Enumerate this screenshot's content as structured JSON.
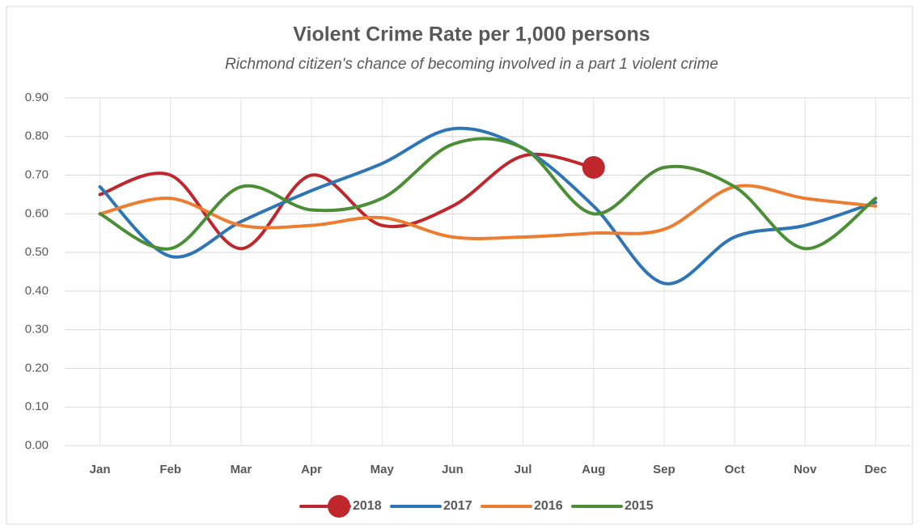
{
  "chart_data": {
    "type": "line",
    "title": "Violent Crime Rate per 1,000 persons",
    "subtitle": "Richmond citizen's chance of becoming involved in a part 1 violent crime",
    "categories": [
      "Jan",
      "Feb",
      "Mar",
      "Apr",
      "May",
      "Jun",
      "Jul",
      "Aug",
      "Sep",
      "Oct",
      "Nov",
      "Dec"
    ],
    "series": [
      {
        "name": "2018",
        "color": "#c0272d",
        "end_marker": true,
        "values": [
          0.65,
          0.7,
          0.51,
          0.7,
          0.57,
          0.62,
          0.75,
          0.72,
          null,
          null,
          null,
          null
        ]
      },
      {
        "name": "2017",
        "color": "#2e75b6",
        "values": [
          0.67,
          0.49,
          0.58,
          0.66,
          0.73,
          0.82,
          0.77,
          0.62,
          0.42,
          0.54,
          0.57,
          0.63
        ]
      },
      {
        "name": "2016",
        "color": "#ed7d31",
        "values": [
          0.6,
          0.64,
          0.57,
          0.57,
          0.59,
          0.54,
          0.54,
          0.55,
          0.56,
          0.67,
          0.64,
          0.62
        ]
      },
      {
        "name": "2015",
        "color": "#4a8f35",
        "values": [
          0.6,
          0.51,
          0.67,
          0.61,
          0.64,
          0.78,
          0.77,
          0.6,
          0.72,
          0.67,
          0.51,
          0.64
        ]
      }
    ],
    "ylim": [
      0,
      0.9
    ],
    "yticks": [
      {
        "value": 0,
        "label": "0.00"
      },
      {
        "value": 0.1,
        "label": "0.10"
      },
      {
        "value": 0.2,
        "label": "0.20"
      },
      {
        "value": 0.3,
        "label": "0.30"
      },
      {
        "value": 0.4,
        "label": "0.40"
      },
      {
        "value": 0.5,
        "label": "0.50"
      },
      {
        "value": 0.6,
        "label": "0.60"
      },
      {
        "value": 0.7,
        "label": "0.70"
      },
      {
        "value": 0.8,
        "label": "0.80"
      },
      {
        "value": 0.9,
        "label": "0.90"
      }
    ],
    "grid": true,
    "legend": "bottom",
    "smooth": true
  }
}
